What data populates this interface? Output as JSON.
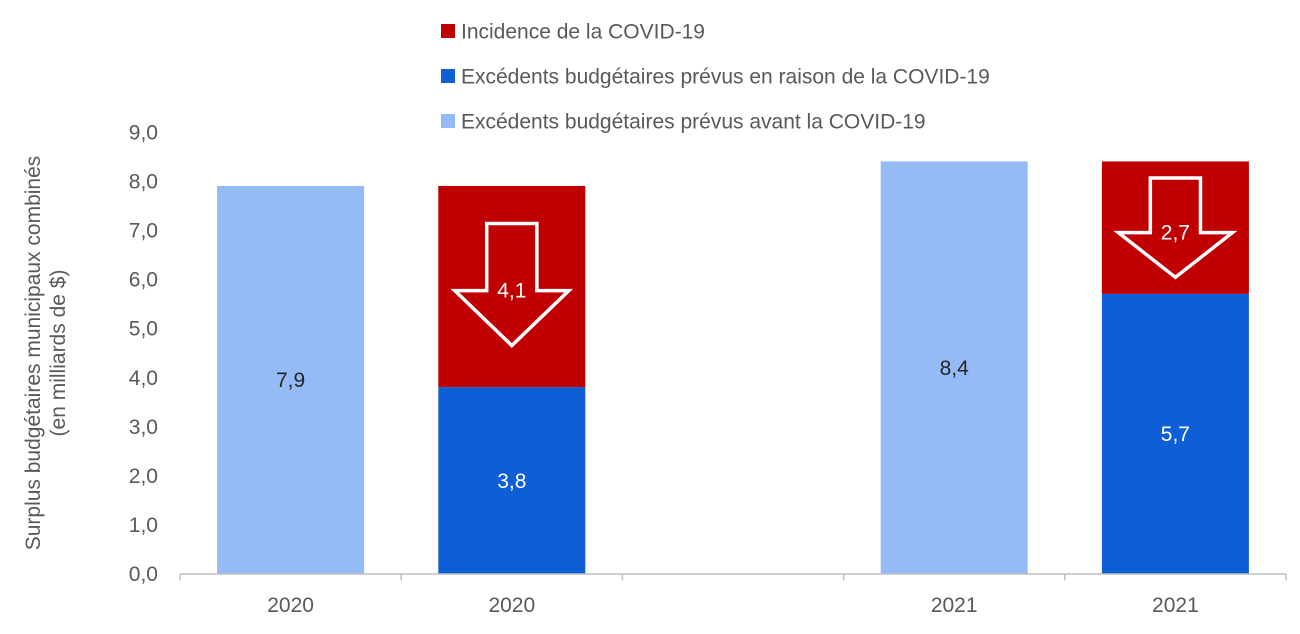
{
  "chart_data": {
    "type": "bar",
    "stacked": true,
    "title": "",
    "xlabel": "",
    "ylabel_lines": [
      "Surplus budgétaires municipaux combinés",
      "(en milliards de $)"
    ],
    "ylim": [
      0,
      9
    ],
    "yticks": [
      "0,0",
      "1,0",
      "2,0",
      "3,0",
      "4,0",
      "5,0",
      "6,0",
      "7,0",
      "8,0",
      "9,0"
    ],
    "ytick_values": [
      0,
      1,
      2,
      3,
      4,
      5,
      6,
      7,
      8,
      9
    ],
    "grid": false,
    "legend_position": "top-center",
    "categories": [
      "2020",
      "2020",
      "",
      "2021",
      "2021"
    ],
    "legend": [
      {
        "name": "Incidence de la COVID-19",
        "color": "#C00000"
      },
      {
        "name": "Excédents budgétaires prévus en raison de la COVID-19",
        "color": "#0E5FD6"
      },
      {
        "name": "Excédents budgétaires prévus avant la COVID-19",
        "color": "#94BBF5"
      }
    ],
    "series": [
      {
        "name": "Excédents budgétaires prévus avant la COVID-19",
        "color": "#94BBF5",
        "label_color": "#262626",
        "values": [
          7.9,
          null,
          null,
          8.4,
          null
        ],
        "labels": [
          "7,9",
          null,
          null,
          "8,4",
          null
        ]
      },
      {
        "name": "Excédents budgétaires prévus en raison de la COVID-19",
        "color": "#0E5FD6",
        "label_color": "#ffffff",
        "values": [
          null,
          3.8,
          null,
          null,
          5.7
        ],
        "labels": [
          null,
          "3,8",
          null,
          null,
          "5,7"
        ]
      },
      {
        "name": "Incidence de la COVID-19",
        "color": "#C00000",
        "label_color": "#ffffff",
        "values": [
          null,
          4.1,
          null,
          null,
          2.7
        ],
        "labels": [
          null,
          "4,1",
          null,
          null,
          "2,7"
        ]
      }
    ],
    "annotations": [
      {
        "type": "down-arrow",
        "category_index": 1,
        "series": "Incidence de la COVID-19",
        "text": "4,1"
      },
      {
        "type": "down-arrow",
        "category_index": 4,
        "series": "Incidence de la COVID-19",
        "text": "2,7"
      }
    ]
  }
}
